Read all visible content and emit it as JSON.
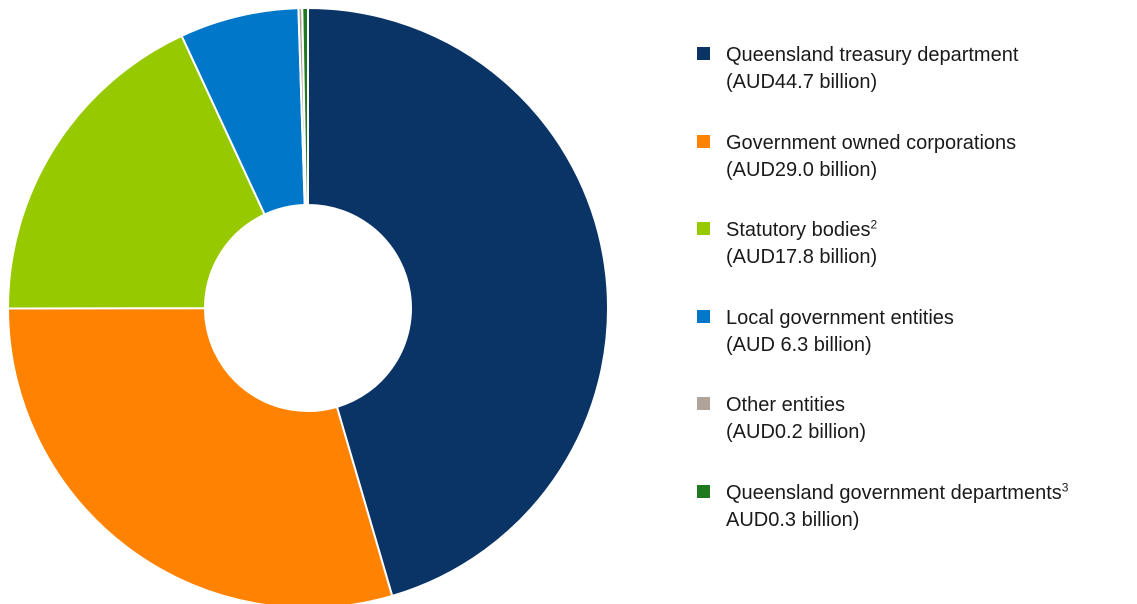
{
  "chart_data": {
    "type": "pie",
    "donut": true,
    "slices": [
      {
        "label": "Queensland treasury department",
        "amount_label": "(AUD44.7 billion)",
        "value": 44.7,
        "color": "#0b3466"
      },
      {
        "label": "Government owned corporations",
        "amount_label": "(AUD29.0 billion)",
        "value": 29.0,
        "color": "#ff8200"
      },
      {
        "label": "Statutory bodies",
        "footnote": "2",
        "amount_label": "(AUD17.8 billion)",
        "value": 17.8,
        "color": "#97c900"
      },
      {
        "label": "Local government entities",
        "amount_label": "(AUD 6.3 billion)",
        "value": 6.3,
        "color": "#0077c8"
      },
      {
        "label": "Other entities",
        "amount_label": "(AUD0.2 billion)",
        "value": 0.2,
        "color": "#b0a49a"
      },
      {
        "label": "Queensland government departments",
        "footnote": "3",
        "amount_label": "AUD0.3 billion)",
        "value": 0.3,
        "color": "#1f7a1f"
      }
    ],
    "start_angle": "12 o'clock",
    "direction": "clockwise",
    "legend_position": "right"
  }
}
